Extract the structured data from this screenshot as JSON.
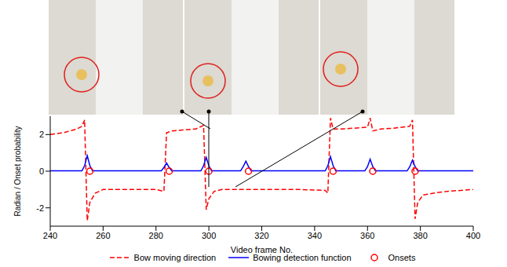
{
  "chart_data": {
    "type": "line",
    "x_label": "Video frame No.",
    "y_label": "Radian / Onset probability",
    "xlim": [
      240,
      400
    ],
    "xticks": [
      240,
      260,
      280,
      300,
      320,
      340,
      360,
      380,
      400
    ],
    "ylim": [
      -3,
      3
    ],
    "yticks": [
      -2,
      0,
      2
    ],
    "legend": "bottom",
    "series": [
      {
        "name": "Bow moving direction",
        "type": "line",
        "color": "#ff0000",
        "line_style": "dashed",
        "x": [
          240,
          245,
          250,
          252,
          253,
          254,
          255,
          257,
          260,
          270,
          280,
          283,
          284,
          286,
          290,
          295,
          298,
          299,
          300,
          302,
          305,
          315,
          325,
          335,
          344,
          345,
          346,
          347,
          350,
          355,
          360,
          361,
          362,
          365,
          370,
          376,
          377,
          378,
          379,
          381,
          385,
          390,
          400
        ],
        "values": [
          2.0,
          2.1,
          2.3,
          2.45,
          2.8,
          -2.7,
          -1.7,
          -1.2,
          -1.0,
          -1.0,
          -1.0,
          -1.1,
          2.1,
          2.2,
          2.25,
          2.3,
          2.5,
          -2.1,
          -1.5,
          -1.1,
          -1.0,
          -1.0,
          -1.0,
          -1.0,
          -1.05,
          -1.2,
          2.9,
          2.3,
          2.3,
          2.35,
          2.4,
          2.9,
          2.2,
          2.3,
          2.35,
          2.45,
          2.8,
          -2.6,
          -1.7,
          -1.3,
          -1.2,
          -1.1,
          -1.0
        ]
      },
      {
        "name": "Bowing detection function",
        "type": "line",
        "color": "#0000ff",
        "line_style": "solid",
        "x": [
          240,
          252,
          253,
          254,
          255,
          256,
          282,
          283,
          284,
          285,
          286,
          297,
          298,
          299,
          300,
          301,
          312,
          313,
          314,
          315,
          316,
          344,
          345,
          346,
          347,
          348,
          359,
          360,
          361,
          362,
          363,
          375,
          376,
          377,
          378,
          379,
          400
        ],
        "values": [
          0.02,
          0.02,
          0.3,
          0.85,
          0.3,
          0.02,
          0.02,
          0.2,
          0.45,
          0.2,
          0.02,
          0.02,
          0.3,
          0.75,
          0.3,
          0.02,
          0.02,
          0.25,
          0.55,
          0.25,
          0.02,
          0.02,
          0.3,
          0.8,
          0.3,
          0.02,
          0.02,
          0.25,
          0.65,
          0.25,
          0.02,
          0.02,
          0.25,
          0.6,
          0.25,
          0.02,
          0.02
        ]
      },
      {
        "name": "Onsets",
        "type": "scatter",
        "color": "#ff0000",
        "marker": "circle",
        "x": [
          255,
          285,
          300,
          315,
          347,
          362,
          378
        ],
        "values": [
          0,
          0,
          0,
          0,
          0,
          0,
          0
        ]
      }
    ]
  }
}
